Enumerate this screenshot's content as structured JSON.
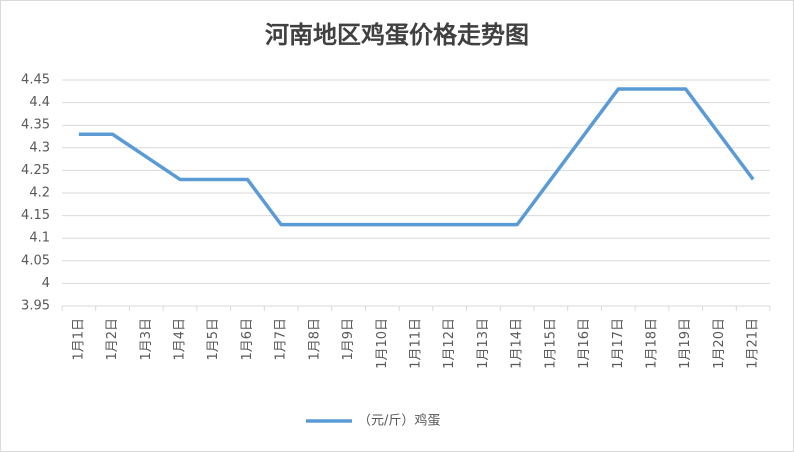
{
  "chart_data": {
    "type": "line",
    "title": "河南地区鸡蛋价格走势图",
    "categories": [
      "1月1日",
      "1月2日",
      "1月3日",
      "1月4日",
      "1月5日",
      "1月6日",
      "1月7日",
      "1月8日",
      "1月9日",
      "1月10日",
      "1月11日",
      "1月12日",
      "1月13日",
      "1月14日",
      "1月15日",
      "1月16日",
      "1月17日",
      "1月18日",
      "1月19日",
      "1月20日",
      "1月21日"
    ],
    "series": [
      {
        "name": "（元/斤）鸡蛋",
        "color": "#5b9bd5",
        "values": [
          4.33,
          4.33,
          4.28,
          4.23,
          4.23,
          4.23,
          4.13,
          4.13,
          4.13,
          4.13,
          4.13,
          4.13,
          4.13,
          4.13,
          4.23,
          4.33,
          4.43,
          4.43,
          4.43,
          4.33,
          4.23
        ]
      }
    ],
    "ylim": [
      3.95,
      4.45
    ],
    "yticks": [
      3.95,
      4,
      4.05,
      4.1,
      4.15,
      4.2,
      4.25,
      4.3,
      4.35,
      4.4,
      4.45
    ],
    "grid": true,
    "legend": "bottom"
  }
}
